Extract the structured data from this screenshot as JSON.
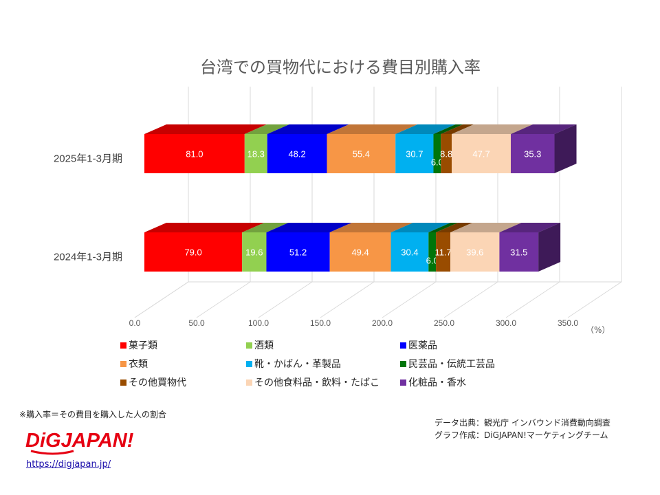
{
  "title": "台湾での買物代における費目別購入率",
  "unit_label": "（%）",
  "note": "※購入率＝その費目を購入した人の割合",
  "source_line1": "データ出典：観光庁 インバウンド消費動向調査",
  "source_line2": "グラフ作成：DiGJAPAN!マーケティングチーム",
  "logo_text": "DiGJAPAN!",
  "url": "https://digjapan.jp/",
  "chart_data": {
    "type": "bar",
    "orientation": "horizontal",
    "stacked": true,
    "style": "3d",
    "categories": [
      "2025年1-3月期",
      "2024年1-3月期"
    ],
    "series": [
      {
        "name": "菓子類",
        "color": "#ff0000",
        "values": [
          81.0,
          79.0
        ],
        "labels": [
          "81.0",
          "79.0"
        ],
        "label_color": "#ffffff"
      },
      {
        "name": "酒類",
        "color": "#92d050",
        "values": [
          18.3,
          19.6
        ],
        "labels": [
          "18.3",
          "19.6"
        ],
        "label_color": "#ffffff"
      },
      {
        "name": "医薬品",
        "color": "#0000ff",
        "values": [
          48.2,
          51.2
        ],
        "labels": [
          "48.2",
          "51.2"
        ],
        "label_color": "#ffffff"
      },
      {
        "name": "衣類",
        "color": "#f79646",
        "values": [
          55.4,
          49.4
        ],
        "labels": [
          "55.4",
          "49.4"
        ],
        "label_color": "#ffffff"
      },
      {
        "name": "靴・かばん・革製品",
        "color": "#00b0f0",
        "values": [
          30.7,
          30.4
        ],
        "labels": [
          "30.7",
          "30.4"
        ],
        "label_color": "#ffffff"
      },
      {
        "name": "民芸品・伝統工芸品",
        "color": "#00750a",
        "values": [
          6.0,
          6.0
        ],
        "labels": [
          "6.0",
          "6.0"
        ],
        "label_color": "#ffffff"
      },
      {
        "name": "その他買物代",
        "color": "#994c00",
        "values": [
          8.8,
          11.7
        ],
        "labels": [
          "8.8",
          "11.7"
        ],
        "label_color": "#ffffff"
      },
      {
        "name": "その他食料品・飲料・たばこ",
        "color": "#fbd5b5",
        "values": [
          47.7,
          39.6
        ],
        "labels": [
          "47.7",
          "39.6"
        ],
        "label_color": "#ffffff"
      },
      {
        "name": "化粧品・香水",
        "color": "#7030a0",
        "values": [
          35.3,
          31.5
        ],
        "labels": [
          "35.3",
          "31.5"
        ],
        "label_color": "#ffffff"
      }
    ],
    "xlim": [
      0,
      350
    ],
    "xticks": [
      "0.0",
      "50.0",
      "100.0",
      "150.0",
      "200.0",
      "250.0",
      "300.0",
      "350.0"
    ],
    "grid": true,
    "legend_position": "bottom"
  }
}
